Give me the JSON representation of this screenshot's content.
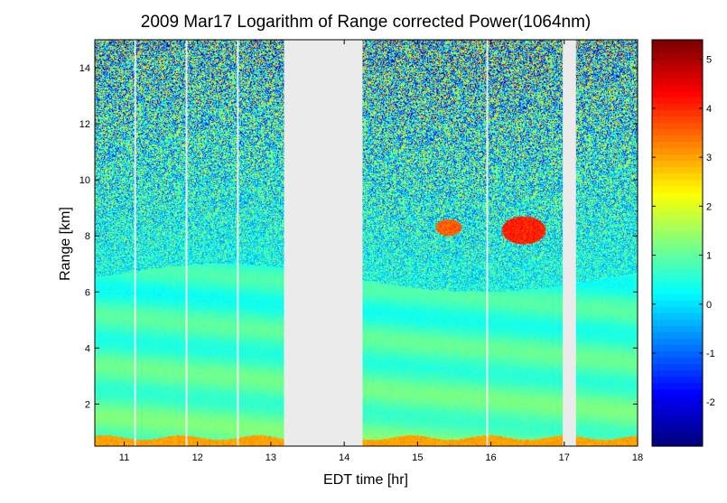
{
  "chart_data": {
    "type": "heatmap",
    "title": "2009 Mar17  Logarithm of Range corrected Power(1064nm)",
    "xlabel": "EDT time [hr]",
    "ylabel": "Range [km]",
    "xlim": [
      10.6,
      18.0
    ],
    "ylim": [
      0.5,
      15.0
    ],
    "xticks": [
      11,
      12,
      13,
      14,
      15,
      16,
      17,
      18
    ],
    "yticks": [
      2,
      4,
      6,
      8,
      10,
      12,
      14
    ],
    "colorbar": {
      "clim": [
        -2.9,
        5.4
      ],
      "ticks": [
        -2,
        -1,
        0,
        1,
        2,
        3,
        4,
        5
      ],
      "colormap": "jet"
    },
    "data_gaps_hr": [
      [
        13.18,
        14.25
      ],
      [
        16.98,
        17.16
      ]
    ],
    "white_streaks_hr": [
      11.15,
      11.85,
      12.55,
      15.95
    ],
    "features": {
      "surface_layer_top_km": 0.8,
      "boundary_layer_top_km": 6.5,
      "clouds": [
        {
          "t0": 15.25,
          "t1": 15.6,
          "z0": 8.0,
          "z1": 8.6,
          "value": 4.0
        },
        {
          "t0": 16.15,
          "t1": 16.75,
          "z0": 7.7,
          "z1": 8.7,
          "value": 4.5
        }
      ]
    }
  }
}
